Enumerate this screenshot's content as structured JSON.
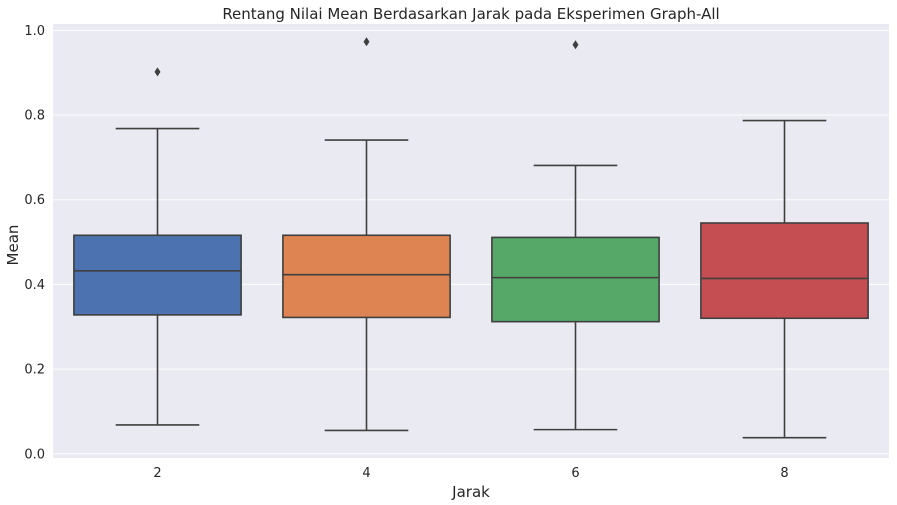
{
  "chart_data": {
    "type": "box",
    "title": "Rentang Nilai Mean Berdasarkan Jarak pada Eksperimen Graph-All",
    "xlabel": "Jarak",
    "ylabel": "Mean",
    "categories": [
      "2",
      "4",
      "6",
      "8"
    ],
    "ylim": [
      -0.01,
      1.015
    ],
    "yticks": [
      0.0,
      0.2,
      0.4,
      0.6,
      0.8,
      1.0
    ],
    "ytick_labels": [
      "0.0",
      "0.2",
      "0.4",
      "0.6",
      "0.8",
      "1.0"
    ],
    "grid": true,
    "background": "#eaeaf2",
    "boxes": [
      {
        "category": "2",
        "whisker_low": 0.068,
        "q1": 0.328,
        "median": 0.432,
        "q3": 0.516,
        "whisker_high": 0.768,
        "outliers": [
          0.902
        ],
        "color": "#4c72b0"
      },
      {
        "category": "4",
        "whisker_low": 0.055,
        "q1": 0.322,
        "median": 0.423,
        "q3": 0.516,
        "whisker_high": 0.741,
        "outliers": [
          0.973
        ],
        "color": "#dd8452"
      },
      {
        "category": "6",
        "whisker_low": 0.057,
        "q1": 0.312,
        "median": 0.416,
        "q3": 0.511,
        "whisker_high": 0.681,
        "outliers": [
          0.966
        ],
        "color": "#55a868"
      },
      {
        "category": "8",
        "whisker_low": 0.038,
        "q1": 0.32,
        "median": 0.414,
        "q3": 0.545,
        "whisker_high": 0.787,
        "outliers": [],
        "color": "#c44e52"
      }
    ]
  }
}
